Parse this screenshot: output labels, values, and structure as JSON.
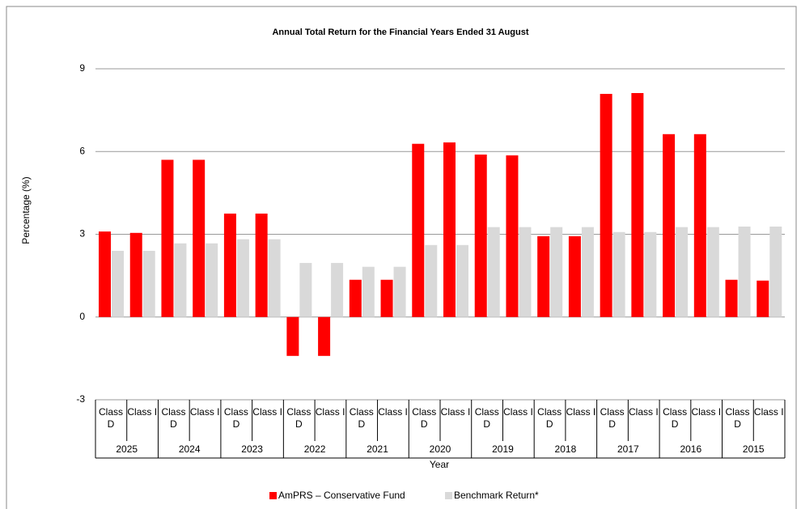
{
  "chart_data": {
    "type": "bar",
    "title": "Annual Total Return for the Financial Years Ended 31 August",
    "x_label": "Year",
    "y_label": "Percentage (%)",
    "categories": [
      "Class D",
      "Class I",
      "Class D",
      "Class I",
      "Class D",
      "Class I",
      "Class D",
      "Class I",
      "Class D",
      "Class I",
      "Class D",
      "Class I",
      "Class D",
      "Class I",
      "Class D",
      "Class I",
      "Class D",
      "Class I",
      "Class D",
      "Class I",
      "Class D",
      "Class I"
    ],
    "years": [
      "2025",
      "2024",
      "2023",
      "2022",
      "2021",
      "2020",
      "2019",
      "2018",
      "2017",
      "2016",
      "2015"
    ],
    "series": [
      {
        "name": "AmPRS – Conservative Fund",
        "color": "#ff0000",
        "values": [
          3.1,
          3.05,
          5.7,
          5.7,
          3.75,
          3.75,
          -1.41,
          -1.41,
          1.35,
          1.35,
          6.28,
          6.33,
          5.89,
          5.86,
          2.93,
          2.93,
          8.09,
          8.12,
          6.63,
          6.63,
          1.35,
          1.32
        ]
      },
      {
        "name": "Benchmark Return*",
        "color": "#d9d9d9",
        "values": [
          2.4,
          2.4,
          2.67,
          2.67,
          2.82,
          2.82,
          1.96,
          1.96,
          1.82,
          1.82,
          2.61,
          2.61,
          3.26,
          3.26,
          3.26,
          3.26,
          3.08,
          3.08,
          3.26,
          3.26,
          3.28,
          3.28
        ]
      }
    ],
    "ylim": [
      -3,
      9
    ],
    "yticks": [
      -3,
      0,
      3,
      6,
      9
    ],
    "grid": true,
    "legend": "bottom"
  }
}
